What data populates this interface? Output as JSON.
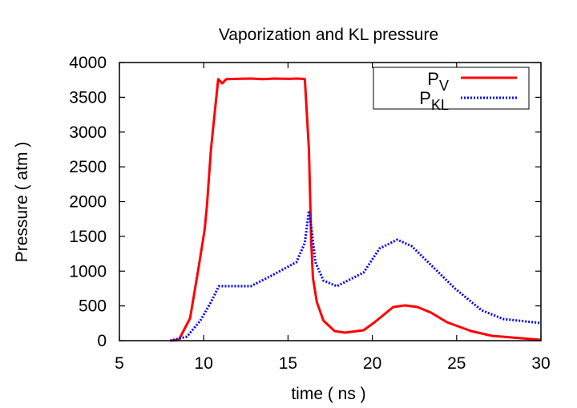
{
  "chart_data": {
    "type": "line",
    "title": "Vaporization  and KL pressure",
    "xlabel": "time ( ns )",
    "ylabel": "Pressure  ( atm )",
    "xlim": [
      5,
      30
    ],
    "ylim": [
      0,
      4000
    ],
    "xticks": [
      5,
      10,
      15,
      20,
      25,
      30
    ],
    "yticks": [
      0,
      500,
      1000,
      1500,
      2000,
      2500,
      3000,
      3500,
      4000
    ],
    "grid": false,
    "legend": "top-right",
    "series": [
      {
        "name": "P",
        "name_sub": "V",
        "color": "#ff0000",
        "style": "solid",
        "x": [
          8.05,
          8.52,
          9.19,
          9.67,
          10.05,
          10.19,
          10.43,
          10.67,
          10.86,
          11.1,
          11.33,
          12.0,
          12.8,
          13.5,
          14.2,
          15.0,
          15.6,
          16.0,
          16.24,
          16.38,
          16.48,
          16.71,
          17.1,
          17.76,
          18.38,
          19.48,
          20.14,
          21.24,
          21.95,
          22.67,
          23.48,
          24.43,
          25.86,
          27.1,
          30.0
        ],
        "y": [
          0,
          12,
          323,
          1015,
          1591,
          1937,
          2744,
          3320,
          3760,
          3700,
          3760,
          3765,
          3770,
          3760,
          3770,
          3765,
          3770,
          3760,
          2744,
          1407,
          900,
          553,
          288,
          138,
          115,
          150,
          265,
          484,
          507,
          484,
          404,
          265,
          138,
          69,
          12
        ]
      },
      {
        "name": "P",
        "name_sub": "KL",
        "color": "#0000ff",
        "style": "dotted",
        "x": [
          8.0,
          9.0,
          9.8,
          10.43,
          10.9,
          12.8,
          14.1,
          15.5,
          16.0,
          16.24,
          16.38,
          16.62,
          17.1,
          17.9,
          19.48,
          20.43,
          21.48,
          22.33,
          23.6,
          24.9,
          26.48,
          27.76,
          30.0
        ],
        "y": [
          0,
          58,
          288,
          553,
          784,
          784,
          945,
          1130,
          1407,
          1868,
          1637,
          1130,
          865,
          784,
          980,
          1326,
          1453,
          1360,
          1061,
          750,
          438,
          311,
          254
        ]
      }
    ]
  }
}
